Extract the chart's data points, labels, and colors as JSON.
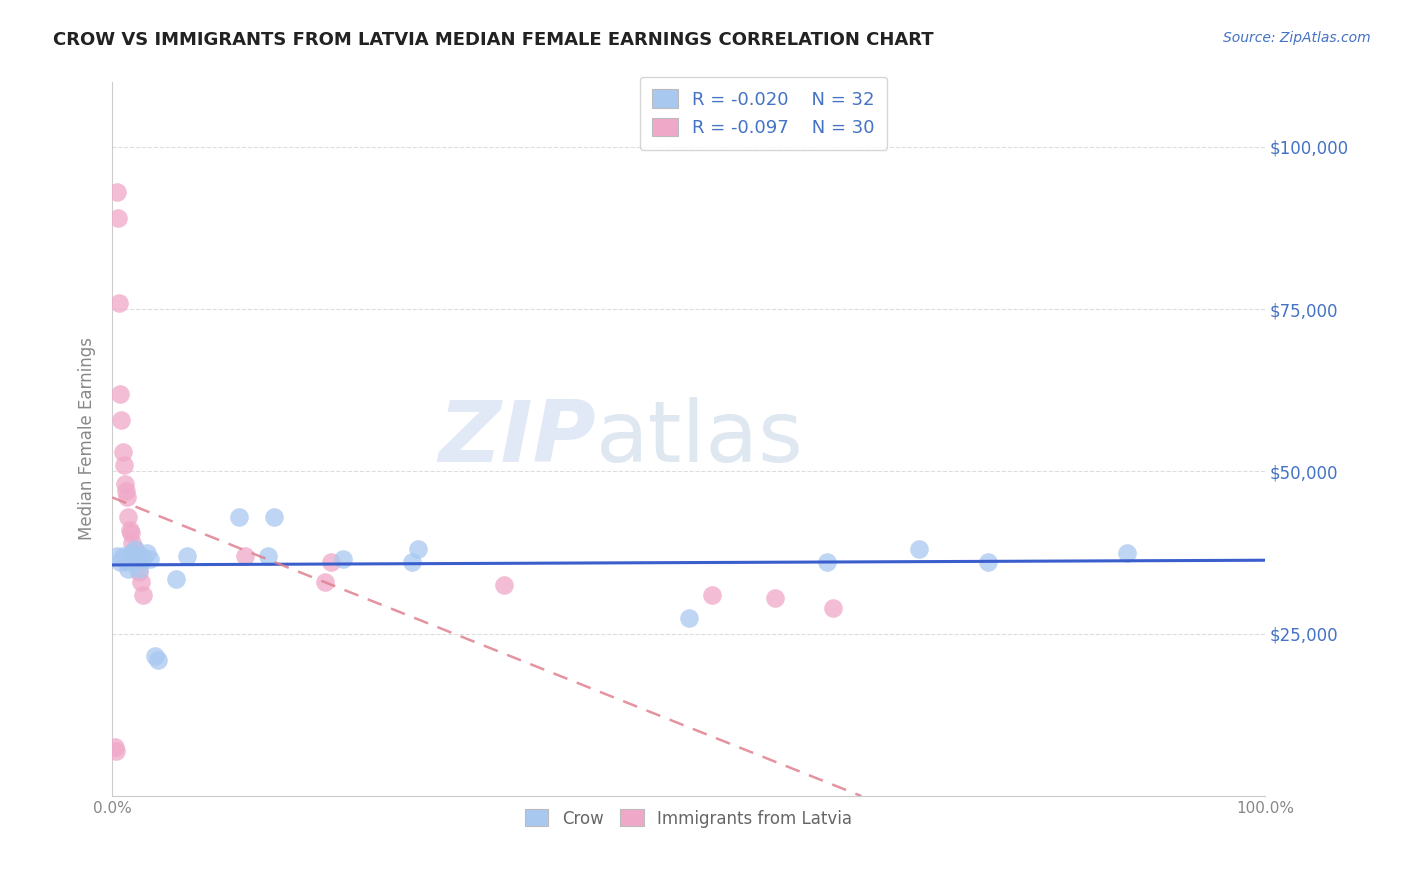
{
  "title": "CROW VS IMMIGRANTS FROM LATVIA MEDIAN FEMALE EARNINGS CORRELATION CHART",
  "source": "Source: ZipAtlas.com",
  "ylabel": "Median Female Earnings",
  "xlim": [
    0,
    1.0
  ],
  "ylim": [
    0,
    110000
  ],
  "yticks": [
    0,
    25000,
    50000,
    75000,
    100000
  ],
  "yticklabels_right": [
    "",
    "$25,000",
    "$50,000",
    "$75,000",
    "$100,000"
  ],
  "crow_R": "-0.020",
  "crow_N": "32",
  "latvia_R": "-0.097",
  "latvia_N": "30",
  "crow_color": "#a8c8f0",
  "latvia_color": "#f0a8c8",
  "crow_line_color": "#3a5fcd",
  "latvia_line_color": "#e08090",
  "watermark_zip": "ZIP",
  "watermark_atlas": "atlas",
  "background_color": "#ffffff",
  "grid_color": "#dddddd",
  "crow_points_x": [
    0.004,
    0.007,
    0.009,
    0.011,
    0.013,
    0.014,
    0.016,
    0.017,
    0.018,
    0.019,
    0.02,
    0.022,
    0.023,
    0.025,
    0.027,
    0.03,
    0.033,
    0.037,
    0.04,
    0.055,
    0.065,
    0.11,
    0.135,
    0.14,
    0.2,
    0.26,
    0.265,
    0.5,
    0.62,
    0.7,
    0.76,
    0.88
  ],
  "crow_points_y": [
    37000,
    36000,
    37000,
    36500,
    36000,
    35000,
    37500,
    37000,
    36500,
    36000,
    38000,
    36500,
    35000,
    37000,
    36500,
    37500,
    36500,
    21500,
    21000,
    33500,
    37000,
    43000,
    37000,
    43000,
    36500,
    36000,
    38000,
    27500,
    36000,
    38000,
    36000,
    37500
  ],
  "latvia_points_x": [
    0.002,
    0.003,
    0.004,
    0.005,
    0.006,
    0.007,
    0.008,
    0.009,
    0.01,
    0.011,
    0.012,
    0.013,
    0.014,
    0.015,
    0.016,
    0.017,
    0.018,
    0.019,
    0.02,
    0.022,
    0.023,
    0.025,
    0.027,
    0.115,
    0.185,
    0.19,
    0.34,
    0.52,
    0.575,
    0.625
  ],
  "latvia_points_y": [
    7500,
    7000,
    93000,
    89000,
    76000,
    62000,
    58000,
    53000,
    51000,
    48000,
    47000,
    46000,
    43000,
    41000,
    40500,
    39000,
    37500,
    36500,
    38000,
    36000,
    34500,
    33000,
    31000,
    37000,
    33000,
    36000,
    32500,
    31000,
    30500,
    29000
  ],
  "latvia_line_x0": 0.0,
  "latvia_line_y0": 46000,
  "latvia_line_x1": 0.65,
  "latvia_line_y1": 0,
  "title_color": "#222222",
  "source_color": "#4472c4",
  "axis_color": "#888888",
  "right_axis_color": "#4472c4"
}
